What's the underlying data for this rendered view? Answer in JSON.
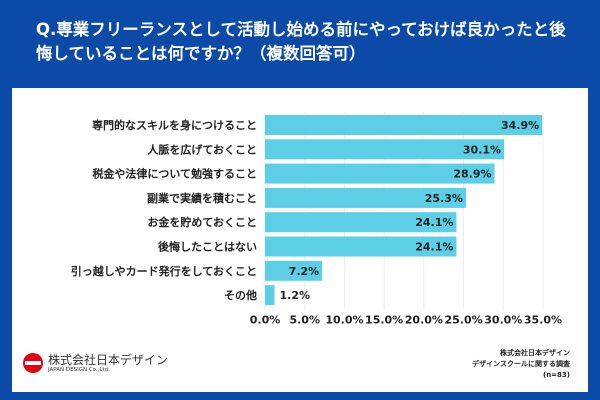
{
  "chart_data": {
    "type": "bar",
    "orientation": "horizontal",
    "title": "Q.専業フリーランスとして活動し始める前にやっておけば良かったと後悔していることは何ですか？（複数回答可）",
    "categories": [
      "専門的なスキルを身につけること",
      "人脈を広げておくこと",
      "税金や法律について勉強すること",
      "副業で実績を積むこと",
      "お金を貯めておくこと",
      "後悔したことはない",
      "引っ越しやカード発行をしておくこと",
      "その他"
    ],
    "values": [
      34.9,
      30.1,
      28.9,
      25.3,
      24.1,
      24.1,
      7.2,
      1.2
    ],
    "value_labels": [
      "34.9%",
      "30.1%",
      "28.9%",
      "25.3%",
      "24.1%",
      "24.1%",
      "7.2%",
      "1.2%"
    ],
    "xlim": [
      0,
      35
    ],
    "ticks": [
      0,
      5,
      10,
      15,
      20,
      25,
      30,
      35
    ],
    "tick_labels": [
      "0.0%",
      "5.0%",
      "10.0%",
      "15.0%",
      "20.0%",
      "25.0%",
      "30.0%",
      "35.0%"
    ],
    "grid": true,
    "bar_color": "#5ccfe6"
  },
  "colors": {
    "background": "#0b4aa6",
    "logo_red": "#e60012"
  },
  "logo": {
    "jp": "株式会社日本デザイン",
    "en": "JAPAN DESIGN Co.,Ltd."
  },
  "source": {
    "line1": "株式会社日本デザイン",
    "line2": "デザインスクールに関する調査",
    "line3": "(n=83)"
  }
}
